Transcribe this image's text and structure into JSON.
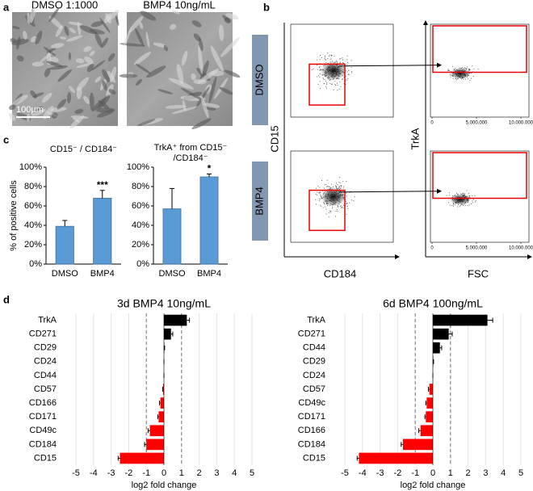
{
  "panel_labels": [
    "a",
    "b",
    "c",
    "d"
  ],
  "micrographs": {
    "titles": [
      "DMSO 1:1000",
      "BMP4 10ng/mL"
    ],
    "scale_bar": "100µm"
  },
  "flow": {
    "conditions": [
      "DMSO",
      "BMP4"
    ],
    "y_label_left": "CD15",
    "x_label_left": "CD184",
    "y_label_right": "TrkA",
    "x_label_right": "FSC",
    "fsc_lim": [
      0,
      10000000
    ],
    "fsc_ticks": [
      0,
      {
        "value": 5000000,
        "label": "5.000.000"
      },
      {
        "value": 10000000,
        "label": "10.000.000"
      }
    ]
  },
  "chart_data": [
    {
      "type": "bar",
      "title": "CD15⁻ / CD184⁻",
      "y_label": "% of positive cells",
      "categories": [
        "DMSO",
        "BMP4"
      ],
      "values": [
        39,
        68
      ],
      "errors": [
        6,
        8
      ],
      "significance": [
        null,
        "***"
      ],
      "color": "#5b9bd5",
      "ylim": [
        0,
        100
      ],
      "yticks": [
        {
          "value": 0,
          "label": "0%"
        },
        {
          "value": 20,
          "label": "20%"
        },
        {
          "value": 40,
          "label": "40%"
        },
        {
          "value": 60,
          "label": "60%"
        },
        {
          "value": 80,
          "label": "80%"
        },
        {
          "value": 100,
          "label": "100%"
        }
      ]
    },
    {
      "type": "bar",
      "title": [
        "TrkA⁺ from CD15⁻",
        "/CD184⁻"
      ],
      "categories": [
        "DMSO",
        "BMP4"
      ],
      "values": [
        57,
        90
      ],
      "errors": [
        21,
        3
      ],
      "significance": [
        null,
        "*"
      ],
      "color": "#5b9bd5",
      "ylim": [
        0,
        100
      ],
      "yticks": [
        {
          "value": 0,
          "label": "0%"
        },
        {
          "value": 20,
          "label": "20%"
        },
        {
          "value": 40,
          "label": "40%"
        },
        {
          "value": 60,
          "label": "60%"
        },
        {
          "value": 80,
          "label": "80%"
        },
        {
          "value": 100,
          "label": "100%"
        }
      ]
    },
    {
      "type": "barh",
      "title": "3d BMP4 10ng/mL",
      "x_label": "log2 fold change",
      "categories": [
        "TrkA",
        "CD271",
        "CD29",
        "CD24",
        "CD44",
        "CD57",
        "CD166",
        "CD171",
        "CD49c",
        "CD184",
        "CD15"
      ],
      "values": [
        1.3,
        0.4,
        0.02,
        0,
        0,
        -0.05,
        -0.2,
        -0.3,
        -0.8,
        -1.0,
        -2.5
      ],
      "errors": [
        0.15,
        0.1,
        0.02,
        0,
        0,
        0.02,
        0.05,
        0.05,
        0.1,
        0.1,
        0.1
      ],
      "color_positive": "#000000",
      "color_negative": "#ff0000",
      "threshold_lines": [
        -1,
        1
      ],
      "grid": true,
      "xlim": [
        -5,
        5
      ],
      "xticks": [
        -5,
        -4,
        -3,
        -2,
        -1,
        0,
        1,
        2,
        3,
        4,
        5
      ]
    },
    {
      "type": "barh",
      "title": "6d BMP4 100ng/mL",
      "x_label": "log2 fold change",
      "categories": [
        "TrkA",
        "CD271",
        "CD44",
        "CD29",
        "CD24",
        "CD57",
        "CD49c",
        "CD171",
        "CD166",
        "CD184",
        "CD15"
      ],
      "values": [
        3.1,
        0.9,
        0.4,
        0.02,
        0,
        -0.2,
        -0.35,
        -0.4,
        -0.7,
        -1.7,
        -4.2
      ],
      "errors": [
        0.3,
        0.2,
        0.1,
        0.02,
        0,
        0.05,
        0.05,
        0.05,
        0.1,
        0.1,
        0.1
      ],
      "color_positive": "#000000",
      "color_negative": "#ff0000",
      "threshold_lines": [
        -1,
        1
      ],
      "grid": true,
      "xlim": [
        -5,
        5
      ],
      "xticks": [
        -5,
        -4,
        -3,
        -2,
        -1,
        0,
        1,
        2,
        3,
        4,
        5
      ]
    }
  ]
}
